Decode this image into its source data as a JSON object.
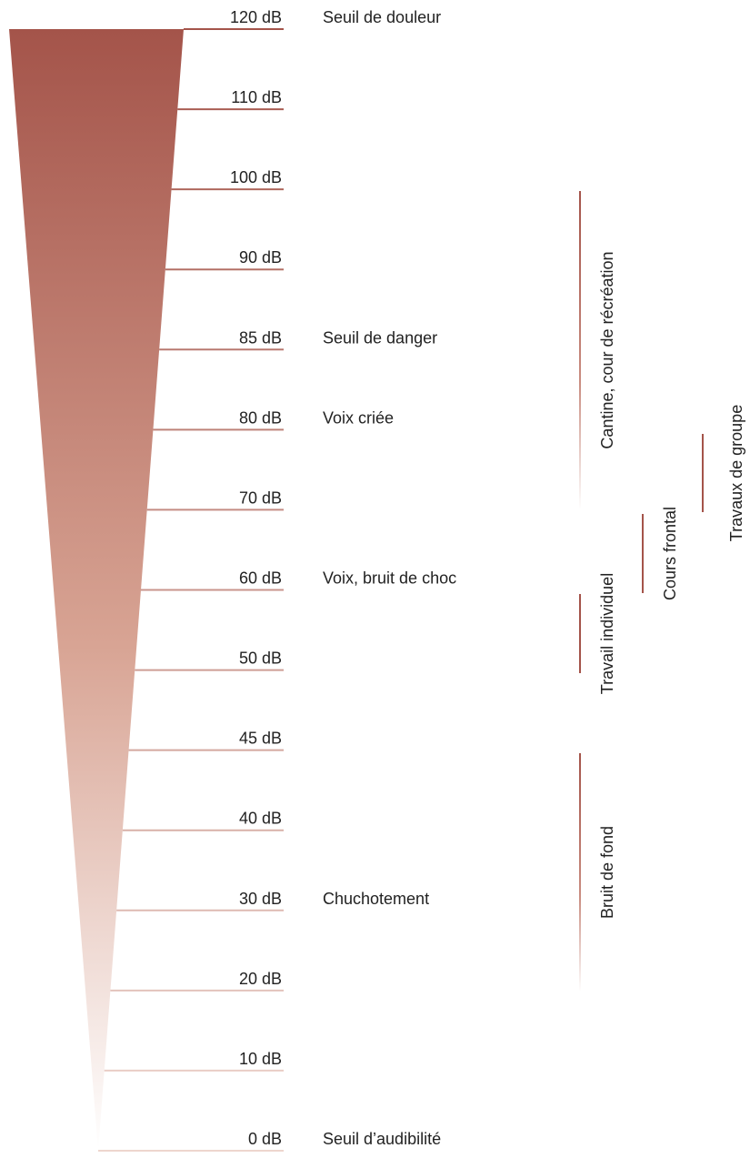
{
  "levels": [
    {
      "label": "120 dB",
      "note": "Seuil de douleur"
    },
    {
      "label": "110 dB"
    },
    {
      "label": "100 dB"
    },
    {
      "label": "90 dB"
    },
    {
      "label": "85 dB",
      "note": "Seuil de danger"
    },
    {
      "label": "80 dB",
      "note": "Voix criée"
    },
    {
      "label": "70 dB"
    },
    {
      "label": "60 dB",
      "note": "Voix, bruit de choc"
    },
    {
      "label": "50 dB"
    },
    {
      "label": "45 dB"
    },
    {
      "label": "40 dB"
    },
    {
      "label": "30 dB",
      "note": "Chuchotement"
    },
    {
      "label": "20 dB"
    },
    {
      "label": "10 dB"
    },
    {
      "label": "0 dB",
      "note": "Seuil d’audibilité"
    }
  ],
  "ranges": [
    {
      "label": "Cantine, cour de récréation"
    },
    {
      "label": "Travail individuel"
    },
    {
      "label": "Cours frontal"
    },
    {
      "label": "Travaux de groupe"
    },
    {
      "label": "Bruit de fond"
    }
  ]
}
